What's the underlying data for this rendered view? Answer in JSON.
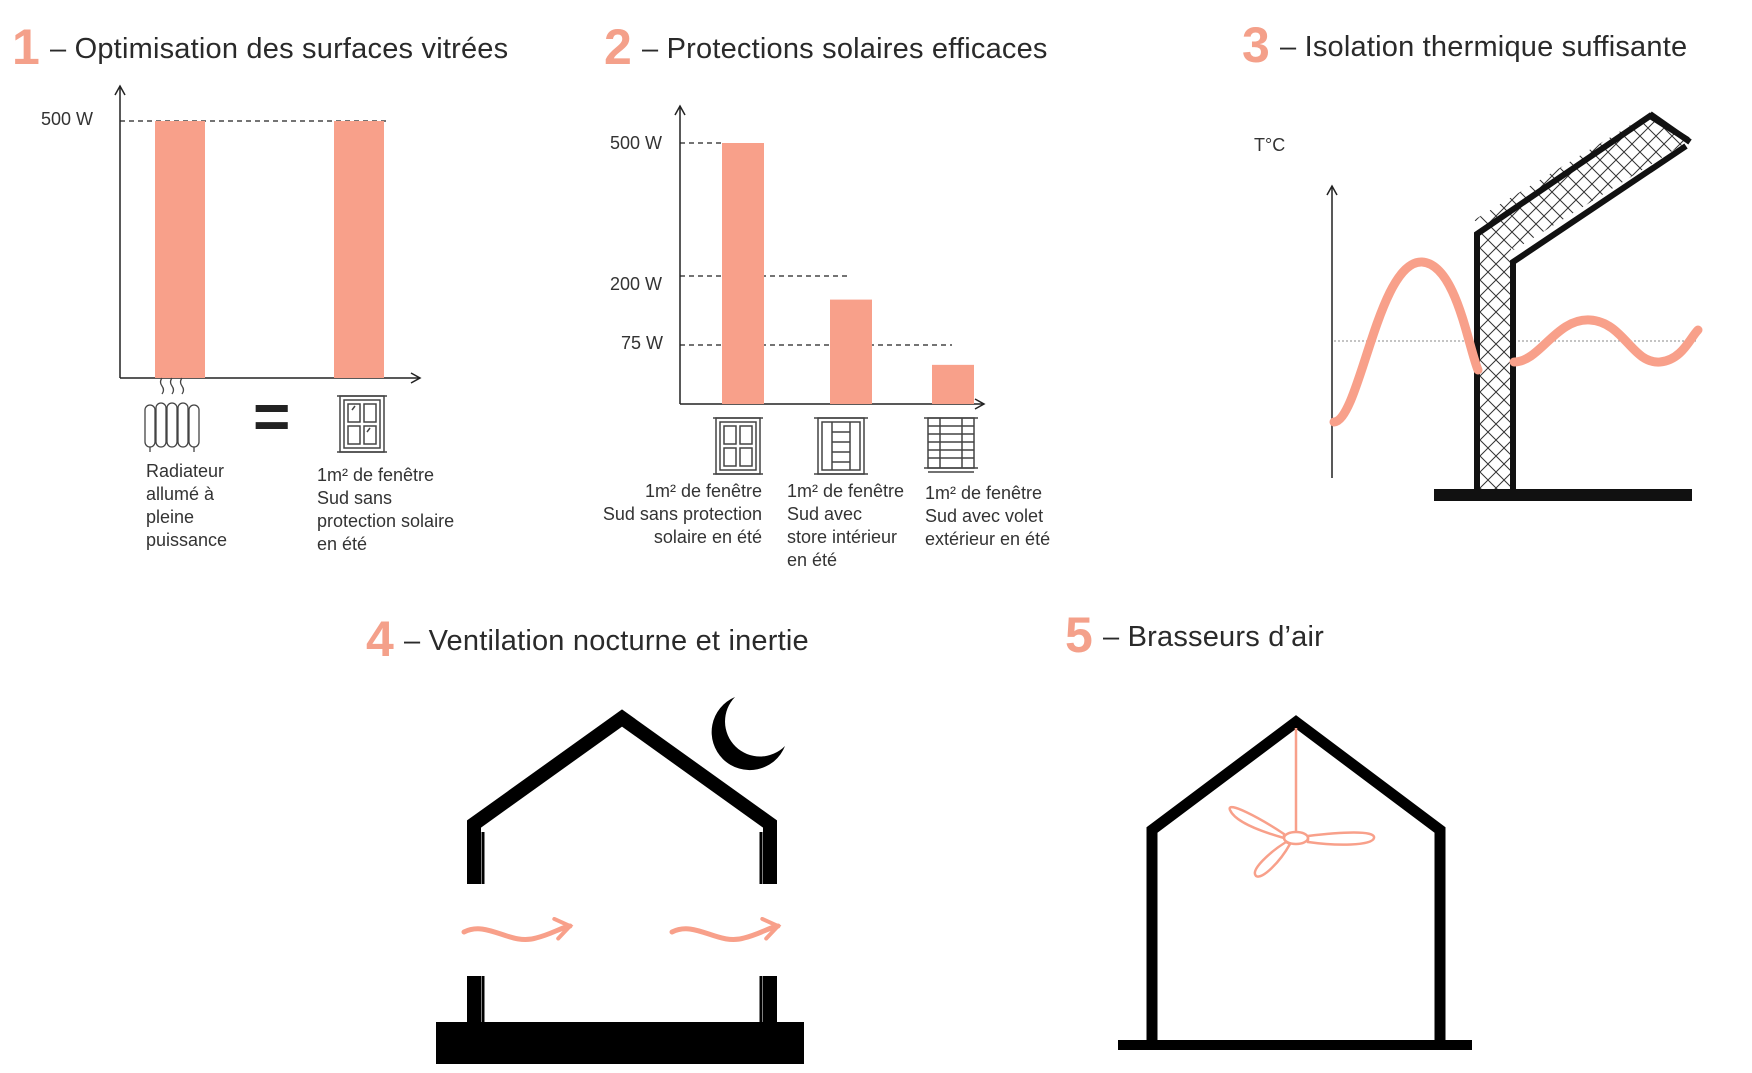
{
  "colors": {
    "accent": "#f8a08a",
    "dark": "#000000",
    "axis": "#222222"
  },
  "sections": [
    {
      "number": "1",
      "title": "– Optimisation des surfaces vitrées"
    },
    {
      "number": "2",
      "title": "– Protections solaires efficaces"
    },
    {
      "number": "3",
      "title": "– Isolation thermique suffisante"
    },
    {
      "number": "4",
      "title": "– Ventilation nocturne et inertie"
    },
    {
      "number": "5",
      "title": "– Brasseurs d’air"
    }
  ],
  "chart_data": [
    {
      "type": "bar",
      "title": "",
      "unit": "W",
      "tick_labels": [
        "500 W"
      ],
      "categories": [
        "Radiateur\nallumé à\npleine\npuissance",
        "1m² de fenêtre\nSud sans\nprotection solaire\nen été"
      ],
      "values": [
        500,
        500
      ],
      "equals_sign": "=",
      "icons": [
        "radiator-icon",
        "window-icon"
      ],
      "ylim": [
        0,
        560
      ]
    },
    {
      "type": "bar",
      "title": "",
      "unit": "W",
      "tick_labels": [
        "500 W",
        "200 W",
        "75 W"
      ],
      "categories": [
        "1m² de fenêtre\nSud sans protection\nsolaire en été",
        "1m² de fenêtre\nSud avec\nstore intérieur\nen été",
        "1m² de fenêtre\nSud avec volet\nextérieur en été"
      ],
      "values": [
        500,
        200,
        75
      ],
      "icons": [
        "window-icon",
        "window-blind-icon",
        "window-shutter-icon"
      ],
      "ylim": [
        0,
        560
      ]
    }
  ],
  "section3": {
    "ylabel": "T°C"
  }
}
